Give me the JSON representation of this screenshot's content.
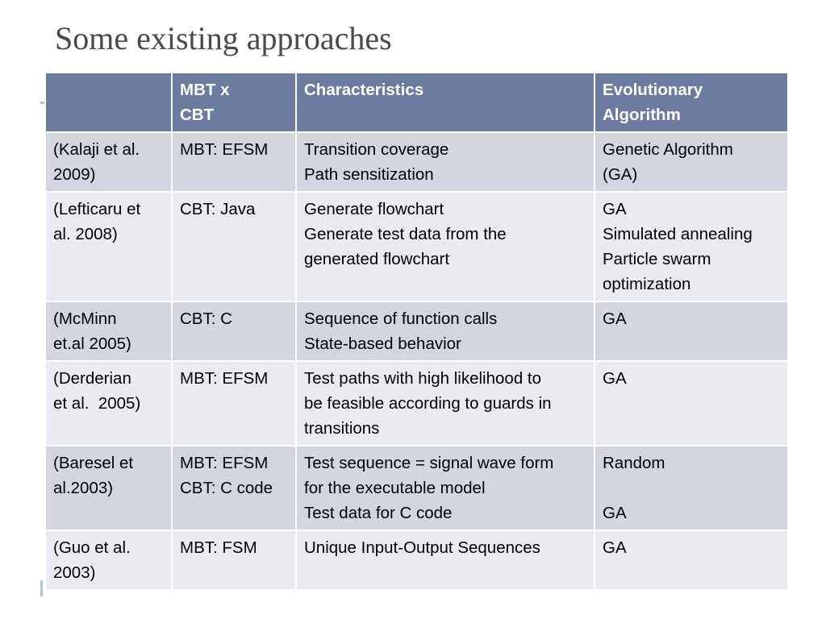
{
  "slide": {
    "title": "Some existing approaches"
  },
  "colors": {
    "header_bg": "#6e7ba1",
    "row_dark": "#d3d6df",
    "row_light": "#eaebf0",
    "title_text": "#4a4a4a"
  },
  "table": {
    "headers": [
      "",
      "MBT x CBT",
      "Characteristics",
      "Evolutionary Algorithm"
    ],
    "rows": [
      {
        "reference": "(Kalaji et al. 2009)",
        "mbt_cbt": [
          "MBT: EFSM"
        ],
        "characteristics": [
          "Transition coverage",
          "Path sensitization"
        ],
        "algorithm": [
          "Genetic Algorithm (GA)"
        ]
      },
      {
        "reference": "(Lefticaru et al. 2008)",
        "mbt_cbt": [
          "CBT: Java"
        ],
        "characteristics": [
          "Generate flowchart",
          "Generate test data from the generated flowchart"
        ],
        "algorithm": [
          "GA",
          "Simulated annealing",
          "Particle swarm optimization"
        ]
      },
      {
        "reference": "(McMinn et.al 2005)",
        "mbt_cbt": [
          "CBT: C"
        ],
        "characteristics": [
          "Sequence of function calls",
          "State-based behavior"
        ],
        "algorithm": [
          "GA"
        ]
      },
      {
        "reference": "(Derderian et al.  2005)",
        "mbt_cbt": [
          "MBT: EFSM"
        ],
        "characteristics": [
          "Test paths with high likelihood to be feasible according to guards in transitions"
        ],
        "algorithm": [
          "GA"
        ]
      },
      {
        "reference": "(Baresel et al.2003)",
        "mbt_cbt": [
          "MBT: EFSM",
          "CBT: C code"
        ],
        "characteristics": [
          "Test sequence = signal wave form for the executable model",
          "Test data for C code"
        ],
        "algorithm": [
          "Random",
          "GA"
        ]
      },
      {
        "reference": "(Guo et al. 2003)",
        "mbt_cbt": [
          "MBT: FSM"
        ],
        "characteristics": [
          "Unique Input-Output Sequences"
        ],
        "algorithm": [
          "GA"
        ]
      }
    ]
  }
}
